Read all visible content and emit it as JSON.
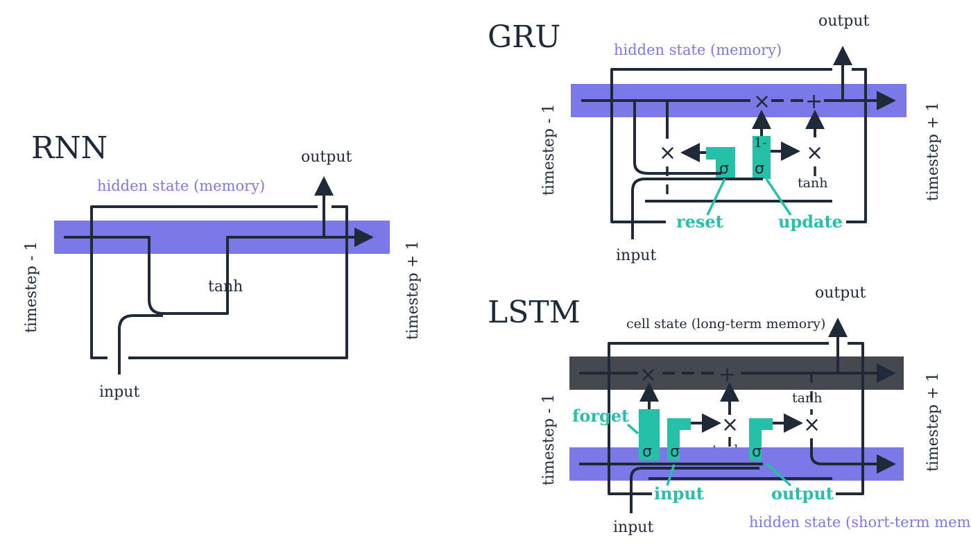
{
  "colors": {
    "hidden_state_band": "#7b78e8",
    "cell_state_band": "#45484f",
    "gate": "#26bfa8",
    "line": "#1f2937",
    "label_purple": "#7b78e8"
  },
  "icons": [
    "arrow-head-icon",
    "multiply-icon",
    "add-icon",
    "sigmoid-gate-icon"
  ],
  "rnn": {
    "title": "RNN",
    "hidden_state_label": "hidden state (memory)",
    "output_label": "output",
    "input_label": "input",
    "prev_label": "timestep - 1",
    "next_label": "timestep + 1",
    "activation": "tanh"
  },
  "gru": {
    "title": "GRU",
    "hidden_state_label": "hidden state (memory)",
    "output_label": "output",
    "input_label": "input",
    "prev_label": "timestep - 1",
    "next_label": "timestep + 1",
    "activation": "tanh",
    "reset_label": "reset",
    "update_label": "update",
    "sigma": "σ",
    "one_minus": "1-",
    "times": "×",
    "plus": "+"
  },
  "lstm": {
    "title": "LSTM",
    "cell_state_label": "cell state (long-term memory)",
    "hidden_state_label": "hidden state (short-term memory)",
    "output_label": "output",
    "input_label": "input",
    "prev_label": "timestep - 1",
    "next_label": "timestep + 1",
    "tanh_a": "tanh",
    "tanh_b": "tanh",
    "forget_label": "forget",
    "input_gate_label": "input",
    "output_gate_label": "output",
    "sigma": "σ",
    "times": "×",
    "plus": "+"
  }
}
